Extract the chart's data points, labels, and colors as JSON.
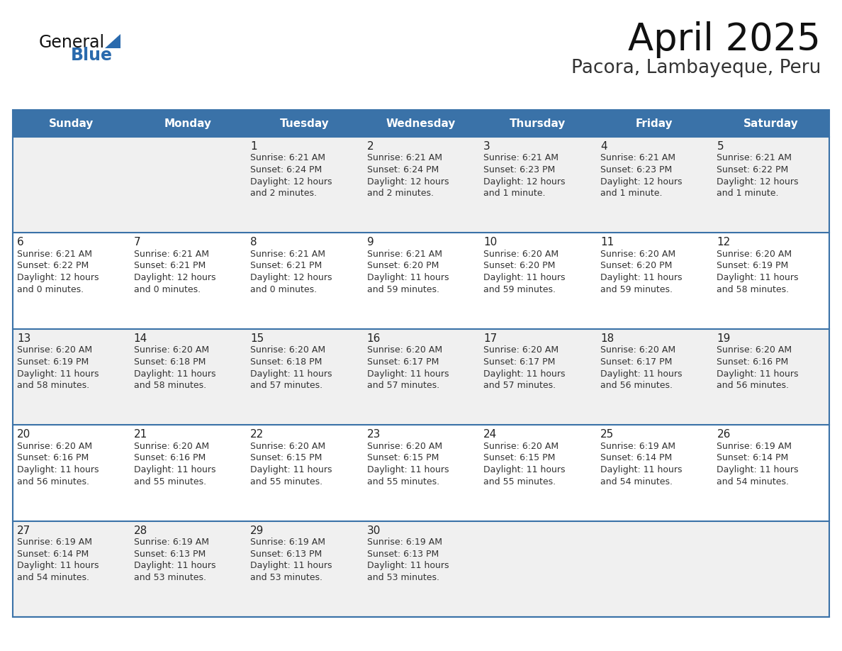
{
  "title": "April 2025",
  "subtitle": "Pacora, Lambayeque, Peru",
  "days_of_week": [
    "Sunday",
    "Monday",
    "Tuesday",
    "Wednesday",
    "Thursday",
    "Friday",
    "Saturday"
  ],
  "header_bg": "#3a72a8",
  "header_text": "#ffffff",
  "cell_bg_even": "#f0f0f0",
  "cell_bg_odd": "#ffffff",
  "cell_text": "#333333",
  "day_number_color": "#222222",
  "grid_color": "#3a72a8",
  "title_color": "#111111",
  "subtitle_color": "#333333",
  "logo_general_color": "#111111",
  "logo_blue_color": "#2a6aad",
  "calendar": [
    [
      {
        "day": null,
        "sunrise": null,
        "sunset": null,
        "daylight": null
      },
      {
        "day": null,
        "sunrise": null,
        "sunset": null,
        "daylight": null
      },
      {
        "day": 1,
        "sunrise": "6:21 AM",
        "sunset": "6:24 PM",
        "daylight": "12 hours\nand 2 minutes."
      },
      {
        "day": 2,
        "sunrise": "6:21 AM",
        "sunset": "6:24 PM",
        "daylight": "12 hours\nand 2 minutes."
      },
      {
        "day": 3,
        "sunrise": "6:21 AM",
        "sunset": "6:23 PM",
        "daylight": "12 hours\nand 1 minute."
      },
      {
        "day": 4,
        "sunrise": "6:21 AM",
        "sunset": "6:23 PM",
        "daylight": "12 hours\nand 1 minute."
      },
      {
        "day": 5,
        "sunrise": "6:21 AM",
        "sunset": "6:22 PM",
        "daylight": "12 hours\nand 1 minute."
      }
    ],
    [
      {
        "day": 6,
        "sunrise": "6:21 AM",
        "sunset": "6:22 PM",
        "daylight": "12 hours\nand 0 minutes."
      },
      {
        "day": 7,
        "sunrise": "6:21 AM",
        "sunset": "6:21 PM",
        "daylight": "12 hours\nand 0 minutes."
      },
      {
        "day": 8,
        "sunrise": "6:21 AM",
        "sunset": "6:21 PM",
        "daylight": "12 hours\nand 0 minutes."
      },
      {
        "day": 9,
        "sunrise": "6:21 AM",
        "sunset": "6:20 PM",
        "daylight": "11 hours\nand 59 minutes."
      },
      {
        "day": 10,
        "sunrise": "6:20 AM",
        "sunset": "6:20 PM",
        "daylight": "11 hours\nand 59 minutes."
      },
      {
        "day": 11,
        "sunrise": "6:20 AM",
        "sunset": "6:20 PM",
        "daylight": "11 hours\nand 59 minutes."
      },
      {
        "day": 12,
        "sunrise": "6:20 AM",
        "sunset": "6:19 PM",
        "daylight": "11 hours\nand 58 minutes."
      }
    ],
    [
      {
        "day": 13,
        "sunrise": "6:20 AM",
        "sunset": "6:19 PM",
        "daylight": "11 hours\nand 58 minutes."
      },
      {
        "day": 14,
        "sunrise": "6:20 AM",
        "sunset": "6:18 PM",
        "daylight": "11 hours\nand 58 minutes."
      },
      {
        "day": 15,
        "sunrise": "6:20 AM",
        "sunset": "6:18 PM",
        "daylight": "11 hours\nand 57 minutes."
      },
      {
        "day": 16,
        "sunrise": "6:20 AM",
        "sunset": "6:17 PM",
        "daylight": "11 hours\nand 57 minutes."
      },
      {
        "day": 17,
        "sunrise": "6:20 AM",
        "sunset": "6:17 PM",
        "daylight": "11 hours\nand 57 minutes."
      },
      {
        "day": 18,
        "sunrise": "6:20 AM",
        "sunset": "6:17 PM",
        "daylight": "11 hours\nand 56 minutes."
      },
      {
        "day": 19,
        "sunrise": "6:20 AM",
        "sunset": "6:16 PM",
        "daylight": "11 hours\nand 56 minutes."
      }
    ],
    [
      {
        "day": 20,
        "sunrise": "6:20 AM",
        "sunset": "6:16 PM",
        "daylight": "11 hours\nand 56 minutes."
      },
      {
        "day": 21,
        "sunrise": "6:20 AM",
        "sunset": "6:16 PM",
        "daylight": "11 hours\nand 55 minutes."
      },
      {
        "day": 22,
        "sunrise": "6:20 AM",
        "sunset": "6:15 PM",
        "daylight": "11 hours\nand 55 minutes."
      },
      {
        "day": 23,
        "sunrise": "6:20 AM",
        "sunset": "6:15 PM",
        "daylight": "11 hours\nand 55 minutes."
      },
      {
        "day": 24,
        "sunrise": "6:20 AM",
        "sunset": "6:15 PM",
        "daylight": "11 hours\nand 55 minutes."
      },
      {
        "day": 25,
        "sunrise": "6:19 AM",
        "sunset": "6:14 PM",
        "daylight": "11 hours\nand 54 minutes."
      },
      {
        "day": 26,
        "sunrise": "6:19 AM",
        "sunset": "6:14 PM",
        "daylight": "11 hours\nand 54 minutes."
      }
    ],
    [
      {
        "day": 27,
        "sunrise": "6:19 AM",
        "sunset": "6:14 PM",
        "daylight": "11 hours\nand 54 minutes."
      },
      {
        "day": 28,
        "sunrise": "6:19 AM",
        "sunset": "6:13 PM",
        "daylight": "11 hours\nand 53 minutes."
      },
      {
        "day": 29,
        "sunrise": "6:19 AM",
        "sunset": "6:13 PM",
        "daylight": "11 hours\nand 53 minutes."
      },
      {
        "day": 30,
        "sunrise": "6:19 AM",
        "sunset": "6:13 PM",
        "daylight": "11 hours\nand 53 minutes."
      },
      {
        "day": null,
        "sunrise": null,
        "sunset": null,
        "daylight": null
      },
      {
        "day": null,
        "sunrise": null,
        "sunset": null,
        "daylight": null
      },
      {
        "day": null,
        "sunrise": null,
        "sunset": null,
        "daylight": null
      }
    ]
  ]
}
